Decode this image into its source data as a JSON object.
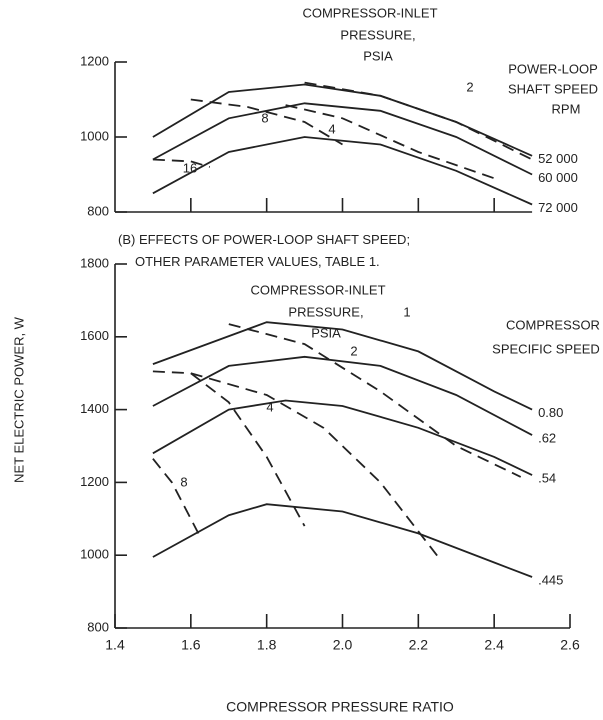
{
  "caption": [
    "(B) EFFECTS OF POWER-LOOP SHAFT SPEED; OTHER PARAMETER VALUES, TABLE 1."
  ],
  "chart_data": [
    {
      "type": "line",
      "annotation": [
        "COMPRESSOR-INLET",
        "PRESSURE,",
        "PSIA"
      ],
      "legend_title": [
        "POWER-LOOP",
        "SHAFT SPEED",
        "RPM"
      ],
      "xlim": [
        1.4,
        2.6
      ],
      "xticks": [
        1.6,
        1.8,
        2.0,
        2.2,
        2.4
      ],
      "ylim": [
        800,
        1200
      ],
      "yticks": [
        800,
        1000,
        1200
      ],
      "series": [
        {
          "name": "52 000",
          "style": "solid",
          "x": [
            1.5,
            1.7,
            1.9,
            2.1,
            2.3,
            2.5
          ],
          "values": [
            1000,
            1120,
            1140,
            1110,
            1040,
            950
          ]
        },
        {
          "name": "60 000",
          "style": "solid",
          "x": [
            1.5,
            1.7,
            1.9,
            2.1,
            2.3,
            2.5
          ],
          "values": [
            940,
            1050,
            1090,
            1070,
            1000,
            900
          ]
        },
        {
          "name": "72 000",
          "style": "solid",
          "x": [
            1.5,
            1.7,
            1.9,
            2.1,
            2.3,
            2.5
          ],
          "values": [
            850,
            960,
            1000,
            980,
            910,
            820
          ]
        },
        {
          "name": "2",
          "style": "dashed",
          "x": [
            1.9,
            2.1,
            2.3,
            2.5
          ],
          "values": [
            1145,
            1110,
            1040,
            940
          ]
        },
        {
          "name": "4",
          "style": "dashed",
          "x": [
            1.85,
            2.0,
            2.2,
            2.4
          ],
          "values": [
            1085,
            1050,
            960,
            890
          ]
        },
        {
          "name": "8",
          "style": "dashed",
          "x": [
            1.6,
            1.75,
            1.9,
            2.0
          ],
          "values": [
            1100,
            1080,
            1040,
            980
          ]
        },
        {
          "name": "16",
          "style": "dashed",
          "x": [
            1.5,
            1.6,
            1.65
          ],
          "values": [
            940,
            935,
            920
          ]
        }
      ]
    },
    {
      "type": "line",
      "ylabel": "NET ELECTRIC POWER, W",
      "xlabel": "COMPRESSOR PRESSURE RATIO",
      "annotation": [
        "COMPRESSOR-INLET",
        "PRESSURE,",
        "PSIA"
      ],
      "legend_title": [
        "COMPRESSOR",
        "SPECIFIC SPEED"
      ],
      "xlim": [
        1.4,
        2.6
      ],
      "xticks": [
        1.4,
        1.6,
        1.8,
        {
          "value": 2,
          "label": "2.0"
        },
        2.2,
        2.4,
        2.6
      ],
      "ylim": [
        800,
        1800
      ],
      "yticks": [
        800,
        1000,
        1200,
        1400,
        1600,
        1800
      ],
      "series": [
        {
          "name": "0.80",
          "style": "solid",
          "x": [
            1.5,
            1.8,
            2.0,
            2.2,
            2.4,
            2.5
          ],
          "values": [
            1525,
            1640,
            1620,
            1560,
            1450,
            1400
          ]
        },
        {
          "name": ".62",
          "style": "solid",
          "x": [
            1.5,
            1.7,
            1.9,
            2.1,
            2.3,
            2.5
          ],
          "values": [
            1410,
            1520,
            1545,
            1520,
            1440,
            1330
          ]
        },
        {
          "name": ".54",
          "style": "solid",
          "x": [
            1.5,
            1.7,
            1.85,
            2.0,
            2.2,
            2.4,
            2.5
          ],
          "values": [
            1280,
            1400,
            1425,
            1410,
            1350,
            1270,
            1220
          ]
        },
        {
          "name": ".445",
          "style": "solid",
          "x": [
            1.5,
            1.7,
            1.8,
            2.0,
            2.2,
            2.4,
            2.5
          ],
          "values": [
            995,
            1110,
            1140,
            1120,
            1060,
            980,
            940
          ]
        },
        {
          "name": "1",
          "style": "dashed",
          "x": [
            1.7,
            1.9,
            2.1,
            2.3,
            2.47
          ],
          "values": [
            1635,
            1580,
            1450,
            1300,
            1215
          ]
        },
        {
          "name": "2",
          "style": "dashed",
          "x": [
            1.6,
            1.8,
            1.95,
            2.1,
            2.26
          ],
          "values": [
            1500,
            1440,
            1350,
            1200,
            985
          ]
        },
        {
          "name": "4",
          "style": "dashed",
          "x": [
            1.5,
            1.6,
            1.7,
            1.8,
            1.9
          ],
          "values": [
            1505,
            1500,
            1420,
            1270,
            1080
          ]
        },
        {
          "name": "8",
          "style": "dashed",
          "x": [
            1.5,
            1.55,
            1.62
          ],
          "values": [
            1265,
            1200,
            1060
          ]
        }
      ]
    }
  ]
}
